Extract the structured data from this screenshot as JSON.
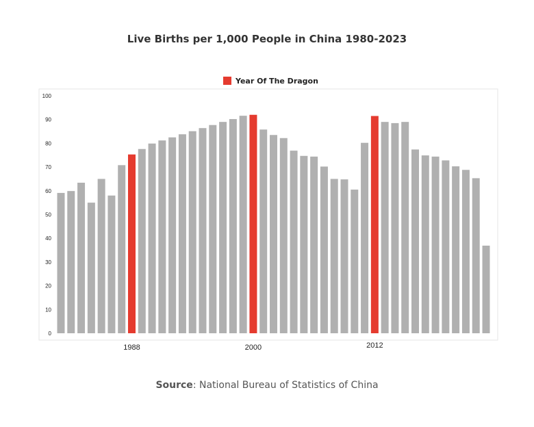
{
  "chart_data": {
    "type": "bar",
    "title": "Live Births per 1,000 People in China 1980-2023",
    "categories": [
      1981,
      1982,
      1983,
      1984,
      1985,
      1986,
      1987,
      1988,
      1989,
      1990,
      1991,
      1992,
      1993,
      1994,
      1995,
      1996,
      1997,
      1998,
      1999,
      2000,
      2001,
      2002,
      2003,
      2004,
      2005,
      2006,
      2007,
      2008,
      2009,
      2010,
      2011,
      2012,
      2013,
      2014,
      2015,
      2016,
      2017,
      2018,
      2019,
      2020,
      2021,
      2022,
      2023
    ],
    "values": [
      59.1,
      59.9,
      63.4,
      55.0,
      65.0,
      58.0,
      70.8,
      75.3,
      77.6,
      79.9,
      81.2,
      82.5,
      83.8,
      85.1,
      86.4,
      87.7,
      89.0,
      90.2,
      91.6,
      92.0,
      85.8,
      83.5,
      82.2,
      76.9,
      74.7,
      74.4,
      70.2,
      65.0,
      64.8,
      60.5,
      80.2,
      91.5,
      89.0,
      88.5,
      89.0,
      77.4,
      74.9,
      74.4,
      72.8,
      70.3,
      68.8,
      65.3,
      36.9
    ],
    "highlight_years": [
      1988,
      2000,
      2012
    ],
    "x_tick_labels": [
      "1988",
      "2000",
      "2012"
    ],
    "y_tick_labels": [
      "0",
      "10",
      "20",
      "30",
      "40",
      "50",
      "60",
      "70",
      "80",
      "90",
      "100"
    ],
    "ylim": [
      0,
      100
    ],
    "grid": false,
    "legend": {
      "placement": "top-center",
      "entries": [
        {
          "name": "Year Of The Dragon",
          "color": "#e53b2f"
        }
      ]
    },
    "colors": {
      "default": "#b0b0b0",
      "highlight": "#e53b2f"
    },
    "xlabel": "",
    "ylabel": ""
  },
  "source": {
    "label": "Source",
    "text": ": National Bureau of Statistics of China"
  }
}
